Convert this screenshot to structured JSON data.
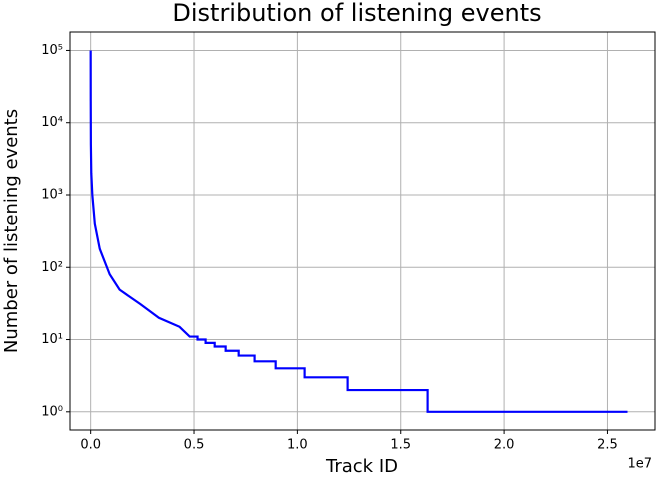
{
  "chart_data": {
    "type": "line",
    "title": "Distribution of listening events",
    "xlabel": "Track ID",
    "ylabel": "Number of listening events",
    "x_offset_label": "1e7",
    "x": [
      0,
      3000,
      10000,
      30000,
      80000,
      200000,
      440000,
      920000,
      1400000,
      2400000,
      3300000,
      4300000,
      4790000,
      5170000,
      5170000,
      5560000,
      5560000,
      6000000,
      6000000,
      6530000,
      6530000,
      7160000,
      7160000,
      7930000,
      7930000,
      8950000,
      8950000,
      10350000,
      10350000,
      12430000,
      12430000,
      16300000,
      16300000,
      25970000
    ],
    "series": [
      {
        "color": "#0000ff",
        "values": [
          100000,
          20000,
          5000,
          2000,
          1000,
          400,
          180,
          80,
          49,
          31,
          20,
          15,
          11,
          11,
          10,
          10,
          9,
          9,
          8,
          8,
          7,
          7,
          6,
          6,
          5,
          5,
          4,
          4,
          3,
          3,
          2,
          2,
          1,
          1
        ]
      }
    ],
    "xlim": [
      -1000000,
      27300000
    ],
    "xticks": [
      {
        "value": 0,
        "label": "0.0"
      },
      {
        "value": 5000000,
        "label": "0.5"
      },
      {
        "value": 10000000,
        "label": "1.0"
      },
      {
        "value": 15000000,
        "label": "1.5"
      },
      {
        "value": 20000000,
        "label": "2.0"
      },
      {
        "value": 25000000,
        "label": "2.5"
      }
    ],
    "ylim": [
      0.56,
      180000
    ],
    "ylog": true,
    "yticks": [
      {
        "value": 1,
        "label": "10⁰"
      },
      {
        "value": 10,
        "label": "10¹"
      },
      {
        "value": 100,
        "label": "10²"
      },
      {
        "value": 1000,
        "label": "10³"
      },
      {
        "value": 10000,
        "label": "10⁴"
      },
      {
        "value": 100000,
        "label": "10⁵"
      }
    ],
    "grid": true
  }
}
